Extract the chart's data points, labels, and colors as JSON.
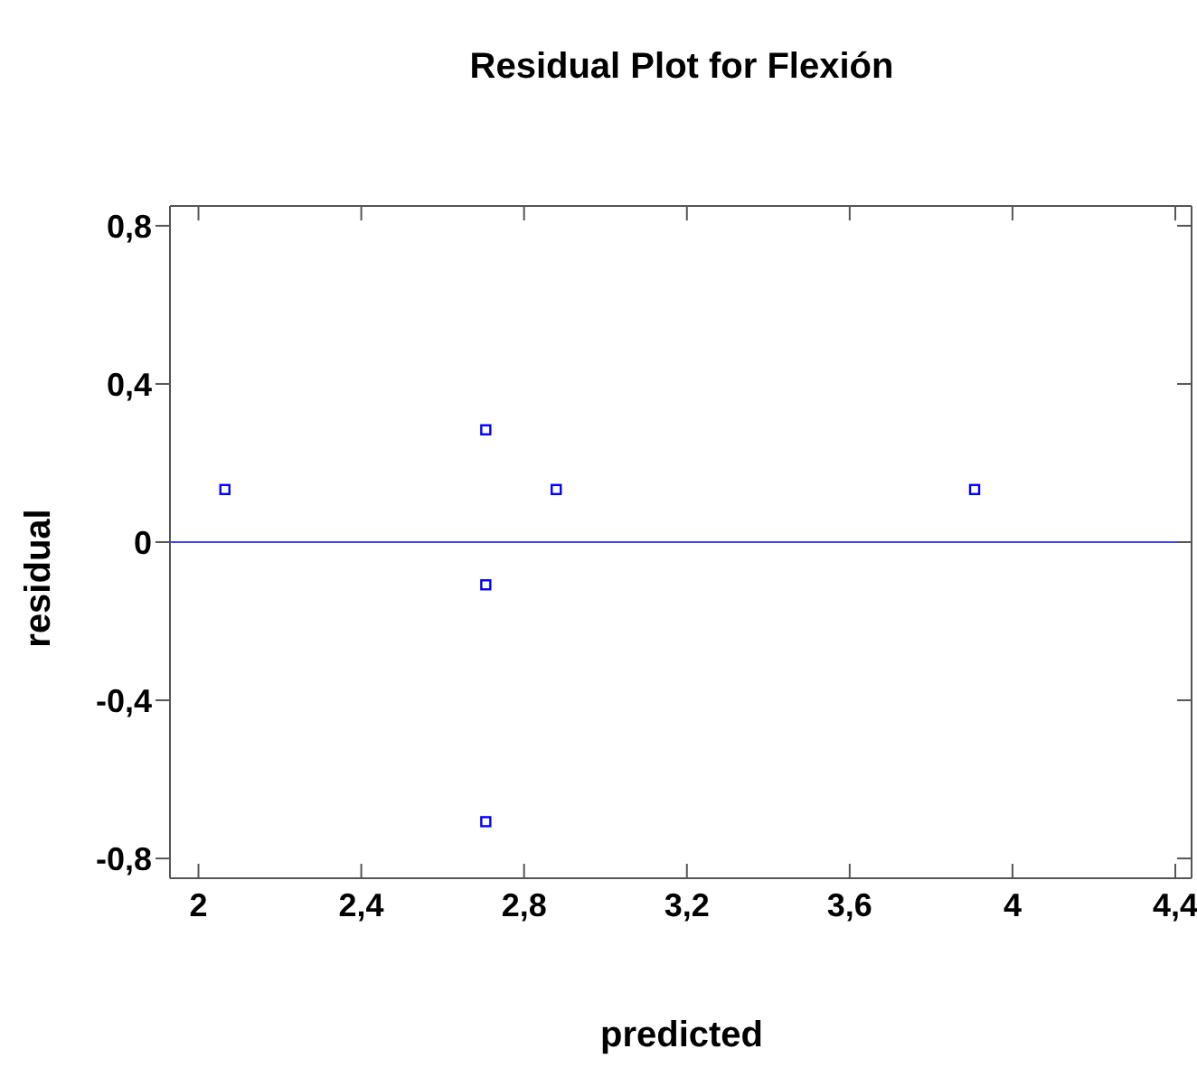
{
  "chart_data": {
    "type": "scatter",
    "title": "Residual Plot for Flexión",
    "xlabel": "predicted",
    "ylabel": "residual",
    "x": [
      2.065,
      2.706,
      2.706,
      2.706,
      2.879,
      3.907
    ],
    "values": [
      0.133,
      0.284,
      -0.108,
      -0.707,
      0.133,
      0.133
    ],
    "color": "#0000ff",
    "marker": "square",
    "xlim": [
      1.93,
      4.44
    ],
    "xticks": [
      {
        "value": 2,
        "label": "2"
      },
      {
        "value": 2.4,
        "label": "2,4"
      },
      {
        "value": 2.8,
        "label": "2,8"
      },
      {
        "value": 3.2,
        "label": "3,2"
      },
      {
        "value": 3.6,
        "label": "3,6"
      },
      {
        "value": 4,
        "label": "4"
      },
      {
        "value": 4.4,
        "label": "4,4"
      }
    ],
    "ylim": [
      -0.85,
      0.85
    ],
    "yticks": [
      {
        "value": -0.8,
        "label": "-0,8"
      },
      {
        "value": -0.4,
        "label": "-0,4"
      },
      {
        "value": 0,
        "label": "0"
      },
      {
        "value": 0.4,
        "label": "0,4"
      },
      {
        "value": 0.8,
        "label": "0,8"
      }
    ],
    "ref_lines": [
      {
        "axis": "y",
        "value": 0,
        "color": "#4040ff"
      }
    ]
  }
}
